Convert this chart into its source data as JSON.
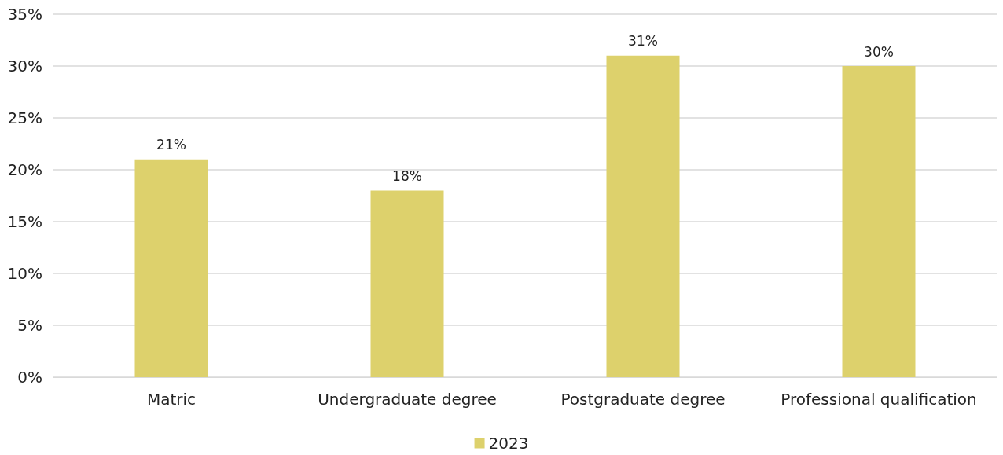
{
  "chart_data": {
    "type": "bar",
    "categories": [
      "Matric",
      "Undergraduate degree",
      "Postgraduate degree",
      "Professional qualification"
    ],
    "series": [
      {
        "name": "2023",
        "color": "#ddd16c",
        "values": [
          21,
          18,
          31,
          30
        ],
        "value_labels": [
          "21%",
          "18%",
          "31%",
          "30%"
        ]
      }
    ],
    "ylim": [
      0,
      35
    ],
    "yticks": [
      {
        "value": 0,
        "label": "0%"
      },
      {
        "value": 5,
        "label": "5%"
      },
      {
        "value": 10,
        "label": "10%"
      },
      {
        "value": 15,
        "label": "15%"
      },
      {
        "value": 20,
        "label": "20%"
      },
      {
        "value": 25,
        "label": "25%"
      },
      {
        "value": 30,
        "label": "30%"
      },
      {
        "value": 35,
        "label": "35%"
      }
    ],
    "grid": "y",
    "legend": "bottom"
  }
}
